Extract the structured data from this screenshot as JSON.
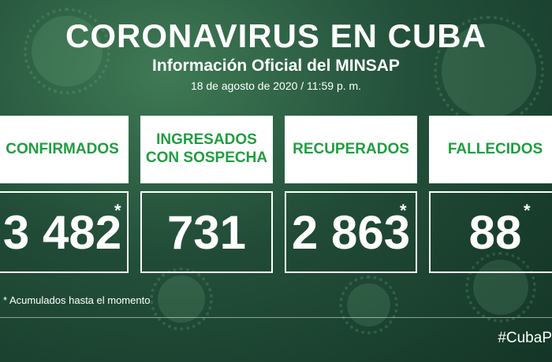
{
  "header": {
    "title": "CORONAVIRUS EN CUBA",
    "subtitle": "Información Oficial del MINSAP",
    "date": "18 de agosto de 2020 / 11:59 p. m."
  },
  "cards": [
    {
      "label": "CONFIRMADOS",
      "value": "3 482",
      "asterisk": "*"
    },
    {
      "label": "INGRESADOS\nCON SOSPECHA",
      "value": "731",
      "asterisk": ""
    },
    {
      "label": "RECUPERADOS",
      "value": "2 863",
      "asterisk": "*"
    },
    {
      "label": "FALLECIDOS",
      "value": "88",
      "asterisk": "*"
    }
  ],
  "footnote": "* Acumulados hasta el momento",
  "hashtag": "#CubaP",
  "colors": {
    "label_text": "#1f9e3f",
    "background": "#23503a"
  }
}
